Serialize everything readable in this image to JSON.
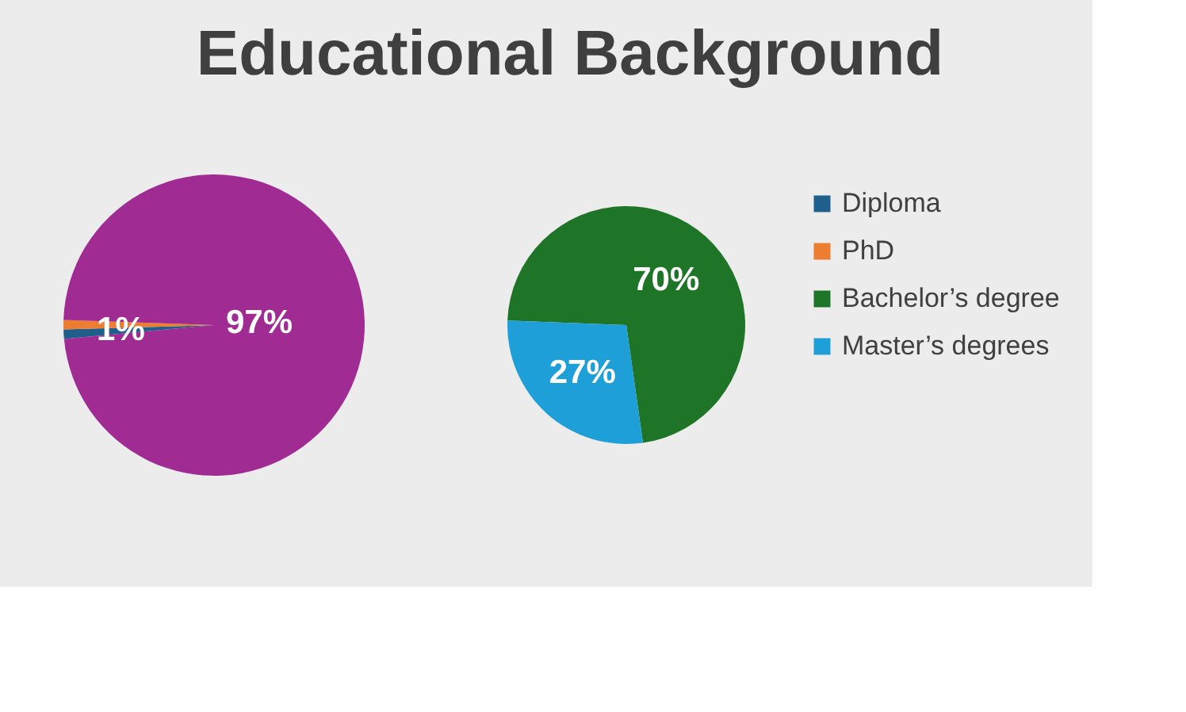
{
  "chart_data": [
    {
      "type": "pie",
      "title": "Educational Background",
      "categories": [
        "Diploma",
        "PhD",
        null
      ],
      "values": [
        1,
        1,
        97
      ],
      "colors": [
        "#1f5f8b",
        "#ed7d31",
        "#a02b93"
      ],
      "value_labels": [
        "1%",
        null,
        "97%"
      ],
      "legend": "right"
    },
    {
      "type": "pie",
      "categories": [
        "Bachelor’s degree",
        "Master’s degrees"
      ],
      "values": [
        70,
        27
      ],
      "colors": [
        "#1e7427",
        "#1f9fd8"
      ],
      "value_labels": [
        "70%",
        "27%"
      ],
      "legend": "right"
    }
  ]
}
